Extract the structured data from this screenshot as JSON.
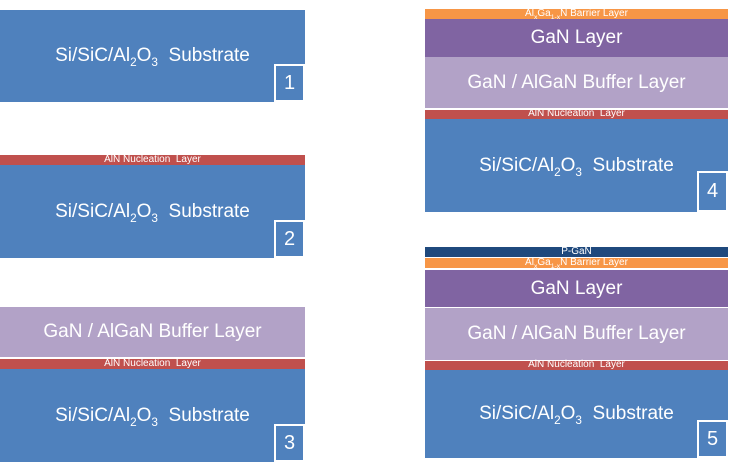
{
  "palette": {
    "substrate_blue": "#4F81BD",
    "nucleation_red": "#C0504D",
    "buffer_lavender": "#B2A2C7",
    "gan_purple": "#8064A2",
    "barrier_orange": "#F79646",
    "pgan_navy": "#1F497D",
    "label_white": "#FFFFFF",
    "background": "#FFFFFF"
  },
  "labels": {
    "substrate": {
      "text": "Si/SiC/Al2O3  Substrate",
      "segments": [
        {
          "t": "Si/SiC/Al"
        },
        {
          "t": "2",
          "sub": true
        },
        {
          "t": "O"
        },
        {
          "t": "3",
          "sub": true
        },
        {
          "t": "  Substrate"
        }
      ]
    },
    "nucleation": {
      "text": "AlN Nucleation  Layer",
      "segments": [
        {
          "t": "AlN Nucleation  Layer"
        }
      ]
    },
    "buffer": {
      "text": "GaN / AlGaN Buffer Layer",
      "segments": [
        {
          "t": "GaN / AlGaN Buffer Layer"
        }
      ]
    },
    "gan": {
      "text": "GaN Layer",
      "segments": [
        {
          "t": "GaN Layer"
        }
      ]
    },
    "barrier": {
      "text": "AlxGa1-xN Barrier Layer",
      "segments": [
        {
          "t": "Al"
        },
        {
          "t": "x",
          "sub": true
        },
        {
          "t": "Ga"
        },
        {
          "t": "1-x",
          "sub": true
        },
        {
          "t": "N Barrier Layer"
        }
      ]
    },
    "pgan": {
      "text": "P-GaN",
      "segments": [
        {
          "t": "P-GaN"
        }
      ]
    }
  },
  "stages": [
    {
      "number": "1",
      "layers": [
        "substrate"
      ]
    },
    {
      "number": "2",
      "layers": [
        "nucleation",
        "substrate"
      ]
    },
    {
      "number": "3",
      "layers": [
        "buffer",
        "nucleation",
        "substrate"
      ]
    },
    {
      "number": "4",
      "layers": [
        "barrier",
        "gan",
        "buffer",
        "nucleation",
        "substrate"
      ]
    },
    {
      "number": "5",
      "layers": [
        "pgan",
        "barrier",
        "gan",
        "buffer",
        "nucleation",
        "substrate"
      ]
    }
  ]
}
